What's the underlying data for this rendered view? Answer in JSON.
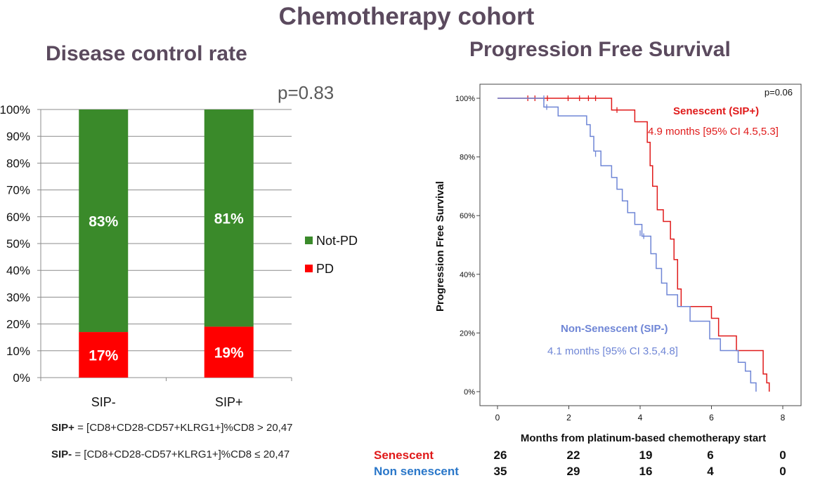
{
  "main_title": "Chemotherapy cohort",
  "colors": {
    "title": "#5b4a5e",
    "not_pd": "#3a8a2a",
    "pd": "#ff0000",
    "senescent": "#e01a1a",
    "non_senescent": "#6f86d6",
    "risk_non_senescent_label": "#2a77c9"
  },
  "chart_data": [
    {
      "type": "bar",
      "stacked": true,
      "title": "Disease control rate",
      "annotation": "p=0.83",
      "categories": [
        "SIP-",
        "SIP+"
      ],
      "series": [
        {
          "name": "PD",
          "values": [
            17,
            19
          ],
          "labels": [
            "17%",
            "19%"
          ]
        },
        {
          "name": "Not-PD",
          "values": [
            83,
            81
          ],
          "labels": [
            "83%",
            "81%"
          ]
        }
      ],
      "ylim": [
        0,
        100
      ],
      "yticks": [
        "0%",
        "10%",
        "20%",
        "30%",
        "40%",
        "50%",
        "60%",
        "70%",
        "80%",
        "90%",
        "100%"
      ],
      "legend_order": [
        "Not-PD",
        "PD"
      ],
      "legend_position": "right",
      "grid": true
    },
    {
      "type": "line",
      "step": true,
      "title": "Progression Free Survival",
      "annotation": "p=0.06",
      "xlabel": "Months from platinum-based chemotherapy start",
      "ylabel": "Progression Free Survival",
      "xlim": [
        0,
        8
      ],
      "ylim": [
        0,
        1
      ],
      "xticks": [
        0,
        2,
        4,
        6,
        8
      ],
      "yticks": [
        "0%",
        "20%",
        "40%",
        "60%",
        "80%",
        "100%"
      ],
      "grid": false,
      "series": [
        {
          "name": "Senescent (SIP+)",
          "median_text": "4.9 months [95% CI 4.5,5.3]",
          "x": [
            0,
            3.2,
            3.85,
            4.2,
            4.28,
            4.35,
            4.48,
            4.65,
            4.85,
            4.95,
            5.05,
            5.15,
            5.4,
            6.0,
            6.2,
            6.7,
            7.45,
            7.55,
            7.62
          ],
          "y": [
            1.0,
            0.96,
            0.92,
            0.85,
            0.77,
            0.7,
            0.62,
            0.58,
            0.52,
            0.45,
            0.35,
            0.29,
            0.29,
            0.25,
            0.19,
            0.14,
            0.06,
            0.03,
            0.0
          ],
          "censored_x": [
            0.85,
            1.05,
            1.4,
            1.98,
            2.3,
            2.55,
            2.75,
            3.35
          ],
          "censored_y": [
            1.0,
            1.0,
            1.0,
            1.0,
            1.0,
            1.0,
            1.0,
            0.96
          ]
        },
        {
          "name": "Non-Senescent (SIP-)",
          "median_text": "4.1 months [95% CI 3.5,4.8]",
          "x": [
            0,
            1.3,
            1.7,
            2.5,
            2.6,
            2.7,
            2.9,
            3.2,
            3.35,
            3.5,
            3.65,
            3.85,
            4.05,
            4.3,
            4.45,
            4.6,
            4.75,
            5.05,
            5.4,
            5.95,
            6.25,
            6.75,
            6.95,
            7.1,
            7.25
          ],
          "y": [
            1.0,
            0.97,
            0.94,
            0.91,
            0.87,
            0.82,
            0.77,
            0.73,
            0.69,
            0.65,
            0.61,
            0.57,
            0.53,
            0.47,
            0.42,
            0.37,
            0.33,
            0.29,
            0.24,
            0.18,
            0.14,
            0.1,
            0.07,
            0.03,
            0.0
          ],
          "censored_x": [
            1.3,
            1.38,
            2.75,
            4.0,
            4.1
          ],
          "censored_y": [
            1.0,
            0.97,
            0.81,
            0.54,
            0.53
          ]
        }
      ]
    }
  ],
  "definitions": {
    "sip_plus_key": "SIP+",
    "sip_plus_rest": " = [CD8+CD28-CD57+KLRG1+]%CD8 > 20,47",
    "sip_minus_key": "SIP-",
    "sip_minus_rest": " = [CD8+CD28-CD57+KLRG1+]%CD8 ≤ 20,47"
  },
  "risk_table": {
    "rows": [
      {
        "label": "Senescent",
        "values": [
          "26",
          "22",
          "19",
          "6",
          "0"
        ]
      },
      {
        "label": "Non senescent",
        "values": [
          "35",
          "29",
          "16",
          "4",
          "0"
        ]
      }
    ]
  }
}
